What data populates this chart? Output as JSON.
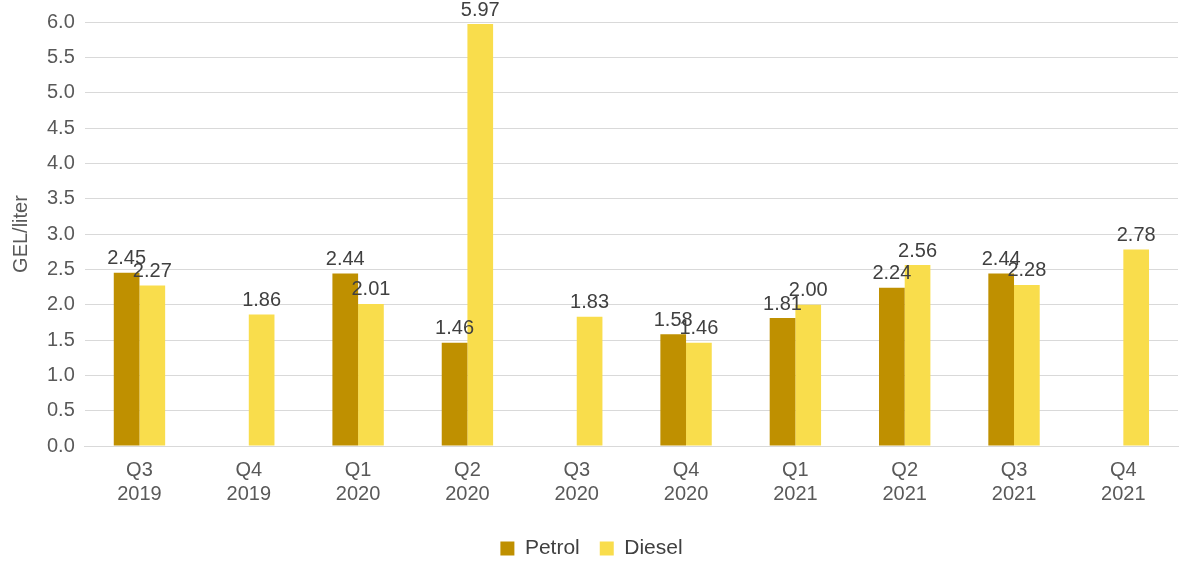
{
  "chart_data": {
    "type": "bar",
    "ylabel": "GEL/liter",
    "categories": [
      "Q3\n2019",
      "Q4\n2019",
      "Q1\n2020",
      "Q2\n2020",
      "Q3\n2020",
      "Q4\n2020",
      "Q1\n2021",
      "Q2\n2021",
      "Q3\n2021",
      "Q4\n2021"
    ],
    "series": [
      {
        "name": "Petrol",
        "color": "#bf9000",
        "values": [
          2.45,
          null,
          2.44,
          1.46,
          null,
          1.58,
          1.81,
          2.24,
          2.44,
          null
        ],
        "value_labels": [
          "2.45",
          null,
          "2.44",
          "1.46",
          null,
          "1.58",
          "1.81",
          "2.24",
          "2.44",
          null
        ]
      },
      {
        "name": "Diesel",
        "color": "#f9dd4c",
        "values": [
          2.27,
          1.86,
          2.01,
          5.97,
          1.83,
          1.46,
          2.0,
          2.56,
          2.28,
          2.78
        ],
        "value_labels": [
          "2.27",
          "1.86",
          "2.01",
          "5.97",
          "1.83",
          "1.46",
          "2.00",
          "2.56",
          "2.28",
          "2.78"
        ]
      }
    ],
    "ylim": [
      0,
      6
    ],
    "yticks": [
      {
        "value": 0,
        "label": "0.0"
      },
      {
        "value": 0.5,
        "label": "0.5"
      },
      {
        "value": 1,
        "label": "1.0"
      },
      {
        "value": 1.5,
        "label": "1.5"
      },
      {
        "value": 2,
        "label": "2.0"
      },
      {
        "value": 2.5,
        "label": "2.5"
      },
      {
        "value": 3,
        "label": "3.0"
      },
      {
        "value": 3.5,
        "label": "3.5"
      },
      {
        "value": 4,
        "label": "4.0"
      },
      {
        "value": 4.5,
        "label": "4.5"
      },
      {
        "value": 5,
        "label": "5.0"
      },
      {
        "value": 5.5,
        "label": "5.5"
      },
      {
        "value": 6,
        "label": "6.0"
      }
    ],
    "grid": "y",
    "legend": "bottom"
  }
}
